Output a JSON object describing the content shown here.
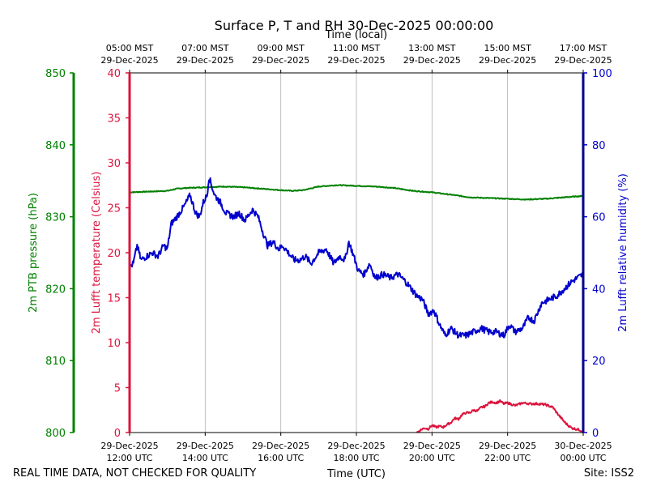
{
  "chart_data": {
    "type": "line",
    "title": "Surface P, T and RH 30-Dec-2025 00:00:00",
    "top_axis_label": "Time (local)",
    "xlabel": "Time (UTC)",
    "footer_left": "REAL TIME DATA, NOT CHECKED FOR QUALITY",
    "footer_right": "Site: ISS2",
    "x_range_hours": [
      0,
      12
    ],
    "x_ticks": [
      {
        "hour": 0,
        "utc_date": "29-Dec-2025",
        "utc_time": "12:00 UTC",
        "local_time": "05:00 MST",
        "local_date": "29-Dec-2025"
      },
      {
        "hour": 2,
        "utc_date": "29-Dec-2025",
        "utc_time": "14:00 UTC",
        "local_time": "07:00 MST",
        "local_date": "29-Dec-2025"
      },
      {
        "hour": 4,
        "utc_date": "29-Dec-2025",
        "utc_time": "16:00 UTC",
        "local_time": "09:00 MST",
        "local_date": "29-Dec-2025"
      },
      {
        "hour": 6,
        "utc_date": "29-Dec-2025",
        "utc_time": "18:00 UTC",
        "local_time": "11:00 MST",
        "local_date": "29-Dec-2025"
      },
      {
        "hour": 8,
        "utc_date": "29-Dec-2025",
        "utc_time": "20:00 UTC",
        "local_time": "13:00 MST",
        "local_date": "29-Dec-2025"
      },
      {
        "hour": 10,
        "utc_date": "29-Dec-2025",
        "utc_time": "22:00 UTC",
        "local_time": "15:00 MST",
        "local_date": "29-Dec-2025"
      },
      {
        "hour": 12,
        "utc_date": "30-Dec-2025",
        "utc_time": "00:00 UTC",
        "local_time": "17:00 MST",
        "local_date": "29-Dec-2025"
      }
    ],
    "axes": {
      "pressure": {
        "label": "2m PTB pressure (hPa)",
        "range": [
          800,
          850
        ],
        "ticks": [
          800,
          810,
          820,
          830,
          840,
          850
        ],
        "color": "#008000"
      },
      "temperature": {
        "label": "2m Lufft temperature (Celsius)",
        "range": [
          0,
          40
        ],
        "ticks": [
          0,
          5,
          10,
          15,
          20,
          25,
          30,
          35,
          40
        ],
        "color": "#dc143c"
      },
      "humidity": {
        "label": "2m Lufft relative humidity (%)",
        "range": [
          0,
          100
        ],
        "ticks": [
          0,
          20,
          40,
          60,
          80,
          100
        ],
        "color": "#0000cd"
      }
    },
    "series": [
      {
        "name": "2m PTB pressure (hPa)",
        "axis": "pressure",
        "color": "#008000",
        "x": [
          0,
          0.5,
          1,
          1.25,
          1.5,
          2,
          2.5,
          3,
          3.5,
          4,
          4.3,
          4.6,
          5,
          5.5,
          6,
          6.5,
          7,
          7.5,
          8,
          8.3,
          8.6,
          9,
          9.5,
          10,
          10.5,
          11,
          11.5,
          12
        ],
        "values": [
          833.4,
          833.5,
          833.6,
          833.9,
          834.0,
          834.1,
          834.2,
          834.1,
          833.9,
          833.7,
          833.6,
          833.7,
          834.2,
          834.4,
          834.3,
          834.2,
          834.0,
          833.6,
          833.4,
          833.2,
          833.0,
          832.7,
          832.6,
          832.5,
          832.4,
          832.5,
          832.7,
          832.9
        ]
      },
      {
        "name": "2m Lufft temperature (Celsius)",
        "axis": "temperature",
        "color": "#dc143c",
        "x": [
          7.6,
          7.7,
          7.8,
          7.9,
          8.0,
          8.1,
          8.2,
          8.3,
          8.4,
          8.5,
          8.6,
          8.7,
          8.8,
          8.9,
          9.0,
          9.1,
          9.2,
          9.3,
          9.4,
          9.5,
          9.6,
          9.7,
          9.8,
          9.9,
          10.0,
          10.2,
          10.4,
          10.6,
          10.8,
          11.0,
          11.2,
          11.3,
          11.4,
          11.5,
          11.6,
          11.7,
          11.8,
          11.9,
          12.0
        ],
        "values": [
          0.0,
          0.3,
          0.5,
          0.4,
          0.8,
          0.6,
          0.7,
          0.6,
          0.9,
          1.1,
          1.6,
          1.5,
          2.0,
          2.2,
          2.2,
          2.5,
          2.4,
          2.8,
          2.9,
          3.3,
          3.4,
          3.3,
          3.5,
          3.2,
          3.3,
          3.0,
          3.3,
          3.2,
          3.2,
          3.1,
          2.8,
          2.2,
          1.7,
          1.2,
          0.8,
          0.5,
          0.4,
          0.3,
          0.1
        ]
      },
      {
        "name": "2m Lufft relative humidity (%)",
        "axis": "humidity",
        "color": "#0000cd",
        "x": [
          0,
          0.1,
          0.2,
          0.3,
          0.45,
          0.6,
          0.75,
          0.9,
          1.0,
          1.1,
          1.25,
          1.45,
          1.6,
          1.75,
          1.85,
          1.95,
          2.05,
          2.1,
          2.25,
          2.4,
          2.55,
          2.75,
          2.9,
          3.05,
          3.25,
          3.4,
          3.55,
          3.65,
          3.8,
          3.95,
          4.05,
          4.2,
          4.35,
          4.5,
          4.65,
          4.8,
          5.0,
          5.2,
          5.4,
          5.55,
          5.7,
          5.8,
          5.9,
          6.05,
          6.2,
          6.35,
          6.5,
          6.7,
          6.9,
          7.1,
          7.3,
          7.45,
          7.6,
          7.75,
          7.9,
          8.05,
          8.2,
          8.35,
          8.5,
          8.7,
          8.9,
          9.1,
          9.3,
          9.5,
          9.7,
          9.9,
          10.05,
          10.2,
          10.4,
          10.55,
          10.7,
          10.9,
          11.1,
          11.3,
          11.5,
          11.7,
          11.85,
          12.0
        ],
        "values": [
          46,
          47,
          52,
          48,
          49,
          50,
          49,
          52,
          51,
          58,
          60,
          63,
          66,
          61,
          60,
          64,
          66,
          71,
          66,
          64,
          61,
          60,
          61,
          59,
          62,
          60,
          55,
          52,
          53,
          51,
          52,
          50,
          48,
          48,
          49,
          47,
          50,
          51,
          47,
          49,
          48,
          53,
          50,
          45,
          44,
          47,
          43,
          44,
          43,
          44,
          42,
          40,
          38,
          37,
          33,
          34,
          30,
          27,
          29,
          27,
          27,
          28,
          29,
          28,
          28,
          27,
          30,
          28,
          29,
          32,
          31,
          36,
          37,
          38,
          40,
          42,
          43,
          44
        ]
      }
    ],
    "grid": "vertical"
  }
}
